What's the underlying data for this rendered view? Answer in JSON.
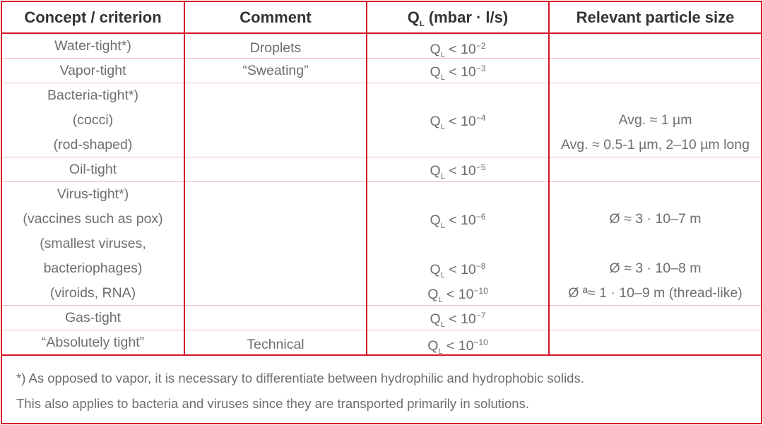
{
  "colors": {
    "border": "#d4122b",
    "row_divider": "#f2b8c2",
    "text": "#6e6e72",
    "header_text": "#333338"
  },
  "header": {
    "concept": "Concept / criterion",
    "comment": "Comment",
    "ql": {
      "symbol": "Q",
      "sub": "L",
      "rest": " (mbar · l/s)"
    },
    "particle": "Relevant particle size"
  },
  "rows": [
    {
      "concept": [
        "Water-tight*)"
      ],
      "comment": [
        "Droplets"
      ],
      "ql": [
        {
          "exp": "−2"
        }
      ],
      "particle": [
        ""
      ]
    },
    {
      "concept": [
        "Vapor-tight"
      ],
      "comment": [
        "“Sweating”"
      ],
      "ql": [
        {
          "exp": "−3"
        }
      ],
      "particle": [
        ""
      ]
    },
    {
      "concept": [
        "Bacteria-tight*)",
        "(cocci)",
        "(rod-shaped)"
      ],
      "comment": [
        "",
        "",
        ""
      ],
      "ql": [
        null,
        {
          "exp": "−4"
        },
        null
      ],
      "particle": [
        "",
        "Avg. ≈ 1 µm",
        "Avg. ≈ 0.5-1 µm, 2–10 µm long"
      ]
    },
    {
      "concept": [
        "Oil-tight"
      ],
      "comment": [
        ""
      ],
      "ql": [
        {
          "exp": "−5"
        }
      ],
      "particle": [
        ""
      ]
    },
    {
      "concept": [
        "Virus-tight*)",
        "(vaccines such as pox)",
        "(smallest viruses,",
        "bacteriophages)",
        "(viroids, RNA)"
      ],
      "comment": [
        "",
        "",
        "",
        "",
        ""
      ],
      "ql": [
        null,
        {
          "exp": "−6"
        },
        null,
        {
          "exp": "−8"
        },
        {
          "exp": "−10"
        }
      ],
      "particle": [
        "",
        "Ø ≈ 3 · 10–7 m",
        "",
        "Ø ≈ 3 · 10–8 m",
        "Ø ª≈ 1 · 10–9 m (thread-like)"
      ]
    },
    {
      "concept": [
        "Gas-tight"
      ],
      "comment": [
        ""
      ],
      "ql": [
        {
          "exp": "−7"
        }
      ],
      "particle": [
        ""
      ]
    },
    {
      "concept": [
        "“Absolutely tight”"
      ],
      "comment": [
        "Technical"
      ],
      "ql": [
        {
          "exp": "−10"
        }
      ],
      "particle": [
        ""
      ]
    }
  ],
  "ql_template": {
    "symbol": "Q",
    "sub": "L",
    "op": " < 10"
  },
  "footnote": [
    "*) As opposed to vapor, it is necessary to differentiate between hydrophilic and hydrophobic solids.",
    "This also applies to bacteria and viruses since they are transported primarily in solutions."
  ]
}
